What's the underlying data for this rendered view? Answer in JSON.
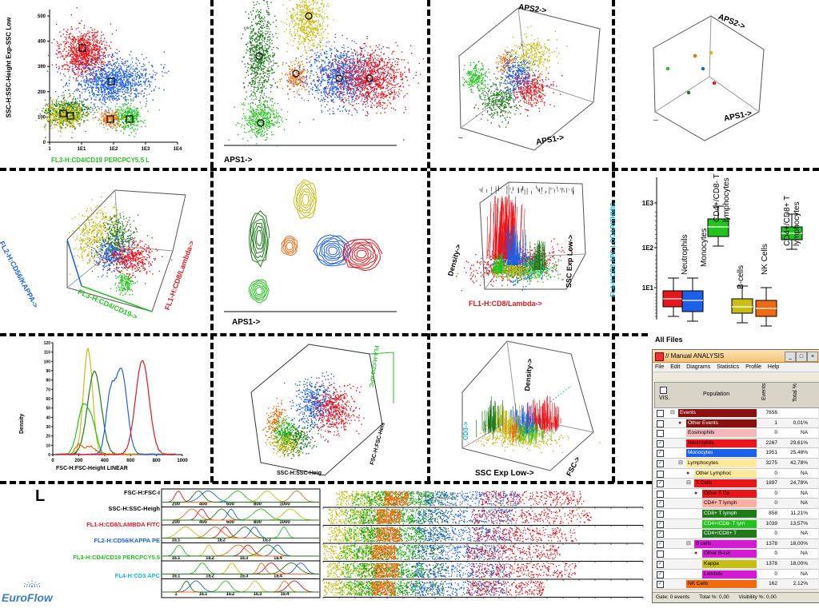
{
  "colors": {
    "red": "#e8151b",
    "blue": "#1c5fe8",
    "green": "#22c41c",
    "dkgreen": "#1f7a1a",
    "orange": "#f06a12",
    "yellow": "#c7bd14",
    "cyan": "#12b8d6"
  },
  "panel1": {
    "ylabel": "SSC-H:SSC-Height Exp-SSC Low",
    "xlabel": "FL3-H:CD4/CD19 PERCPCY5.5 L",
    "yticks": [
      "0",
      "100",
      "200",
      "300",
      "400",
      "500"
    ],
    "xticks": [
      "1",
      "1E1",
      "1E2",
      "1E3",
      "1E4"
    ]
  },
  "panel2": {
    "xlabel": "APS1->"
  },
  "panel3": {
    "aps2": "APS2->",
    "aps1": "APS1->",
    "dots": "..."
  },
  "panel4": {
    "aps2": "APS2->",
    "aps1": "APS1->",
    "dots": "..."
  },
  "panel5": {
    "ylabel": "FL2-H:CD56/KAPPA->",
    "xlabel": "FL3-H:CD4/CD19->",
    "zlabel": "FL1-H:CD8/Lambda->"
  },
  "panel6": {
    "xlabel": "APS1->"
  },
  "panel7": {
    "density": "Density->",
    "ssc": "SSC Exp Low->",
    "fl1": "FL1-H:CD8/Lambda->"
  },
  "panel8": {
    "ylabel": "FL4-H:CD3 APC LOGARITHMIC",
    "yticks": [
      "1E3",
      "1E2",
      "1E1"
    ],
    "boxes": [
      {
        "label": "Neutrophils",
        "color": "#e8151b"
      },
      {
        "label": "Monocytes",
        "color": "#1c5fe8"
      },
      {
        "label": "CD4+/CD8- T lymphocytes",
        "color": "#22c41c"
      },
      {
        "label": "B-cells",
        "color": "#c7bd14"
      },
      {
        "label": "NK Cells",
        "color": "#f06a12"
      },
      {
        "label": "CD4+/CD8+ T lymphocytes",
        "color": "#22c41c"
      }
    ],
    "all_files": "All Files"
  },
  "panel9": {
    "ylabel": "Density",
    "xlabel": "FSC-H:FSC-Height LINEAR",
    "yticks": [
      "0",
      "10",
      "20",
      "30",
      "40",
      "50",
      "60",
      "70",
      "80",
      "90",
      "100",
      "110",
      "120"
    ],
    "xticks": [
      "0",
      "200",
      "400",
      "600",
      "800",
      "1000"
    ]
  },
  "panel10": {
    "xlabel": "SSC-H:SSC-Heig",
    "ylabel": "FSC-H:FSC-Heis",
    "zlabel": "FL4-H:CD3 APC"
  },
  "panel11": {
    "density": "Density->",
    "ssc": "SSC Exp Low->",
    "fsc": "FSC->",
    "cd3": "CD3->"
  },
  "bottom": {
    "letter": "L",
    "rows": [
      {
        "label": "FSC-H:FSC-I",
        "color": "#000000"
      },
      {
        "label": "SSC-H:SSC-Heigh",
        "color": "#000000"
      },
      {
        "label": "FL1-H:CD8/LAMBDA FITC",
        "color": "#e8151b"
      },
      {
        "label": "FL2-H:CD56/KAPPA PE",
        "color": "#1c5fe8"
      },
      {
        "label": "FL3-H:CD4/CD19 PERCPCY5.5",
        "color": "#22c41c"
      },
      {
        "label": "FL4-H:CD3 APC",
        "color": "#12b8d6"
      }
    ],
    "row1_ticks": [
      "200",
      "400",
      "600",
      "800",
      "1000"
    ],
    "row2_ticks": [
      "200",
      "400",
      "600",
      "800",
      "1000"
    ],
    "row3_ticks": [
      "1E1",
      "1E2",
      "1E3"
    ],
    "row4_ticks": [
      "1E1",
      "1E2",
      "1E3",
      "1E4"
    ],
    "row5_ticks": [
      "1E1",
      "1E2",
      "1E3",
      "1E4"
    ],
    "row6_ticks": [
      "1",
      "1E1",
      "1E2",
      "1E3",
      "1E4"
    ],
    "logo": "EuroFlow"
  },
  "window": {
    "title": "// Manual ANALYSIS",
    "menu": [
      "File",
      "Edit",
      "Diagrams",
      "Statistics",
      "Profile",
      "Help"
    ],
    "col_vis": "VIS.",
    "col_population": "Population",
    "col_events": "Events",
    "col_total": "Total %",
    "rows": [
      {
        "name": "Events",
        "color": "#8b1010",
        "text": "#ffffff",
        "indent": 0,
        "events": "7656",
        "total": "",
        "checked": false,
        "tree": "⊟"
      },
      {
        "name": "Other Events",
        "color": "#8b1010",
        "text": "#ffffff",
        "indent": 10,
        "events": "1",
        "total": "0,01%",
        "checked": false,
        "tree": "●"
      },
      {
        "name": "Eosinophils",
        "color": "#f4b8b8",
        "text": "#000000",
        "indent": 10,
        "events": "0",
        "total": "NA",
        "checked": false,
        "tree": ""
      },
      {
        "name": "Neutrophils",
        "color": "#e8151b",
        "text": "#000000",
        "indent": 10,
        "events": "2267",
        "total": "29,61%",
        "checked": true,
        "tree": ""
      },
      {
        "name": "Monocytes",
        "color": "#1c5fe8",
        "text": "#ffffff",
        "indent": 10,
        "events": "1951",
        "total": "25,48%",
        "checked": true,
        "tree": ""
      },
      {
        "name": "Lymphocytes",
        "color": "#ffe89a",
        "text": "#000000",
        "indent": 10,
        "events": "3275",
        "total": "42,78%",
        "checked": true,
        "tree": "⊟"
      },
      {
        "name": "Other Lymphoc",
        "color": "#ffe89a",
        "text": "#000000",
        "indent": 20,
        "events": "0",
        "total": "NA",
        "checked": false,
        "tree": "●"
      },
      {
        "name": "T Cells",
        "color": "#e8151b",
        "text": "#000000",
        "indent": 20,
        "events": "1897",
        "total": "24,78%",
        "checked": true,
        "tree": "⊟"
      },
      {
        "name": "Other T Ce",
        "color": "#e8151b",
        "text": "#000000",
        "indent": 30,
        "events": "0",
        "total": "NA",
        "checked": false,
        "tree": "●"
      },
      {
        "name": "CD4+ T lymph",
        "color": "#ffb0a0",
        "text": "#000000",
        "indent": 30,
        "events": "0",
        "total": "NA",
        "checked": true,
        "tree": ""
      },
      {
        "name": "CD8+ T lymph",
        "color": "#1f7a1a",
        "text": "#ffffff",
        "indent": 30,
        "events": "858",
        "total": "11,21%",
        "checked": true,
        "tree": ""
      },
      {
        "name": "CD4+/CD8- T lym",
        "color": "#22c41c",
        "text": "#ffffff",
        "indent": 30,
        "events": "1039",
        "total": "13,57%",
        "checked": true,
        "tree": ""
      },
      {
        "name": "CD4+/CD8+ T",
        "color": "#1f7a1a",
        "text": "#ffffff",
        "indent": 30,
        "events": "0",
        "total": "NA",
        "checked": true,
        "tree": ""
      },
      {
        "name": "B cells",
        "color": "#d21bd2",
        "text": "#000000",
        "indent": 20,
        "events": "1378",
        "total": "18,00%",
        "checked": true,
        "tree": "⊟"
      },
      {
        "name": "Other B-cel",
        "color": "#d21bd2",
        "text": "#000000",
        "indent": 30,
        "events": "0",
        "total": "NA",
        "checked": false,
        "tree": "●"
      },
      {
        "name": "Kappa",
        "color": "#c7bd14",
        "text": "#000000",
        "indent": 30,
        "events": "1378",
        "total": "18,00%",
        "checked": true,
        "tree": ""
      },
      {
        "name": "Lambda",
        "color": "#d21bd2",
        "text": "#000000",
        "indent": 30,
        "events": "0",
        "total": "NA",
        "checked": true,
        "tree": ""
      },
      {
        "name": "NK Cells",
        "color": "#f06a12",
        "text": "#000000",
        "indent": 10,
        "events": "162",
        "total": "2,12%",
        "checked": true,
        "tree": ""
      }
    ],
    "status_gate": "Gate: 0 events",
    "status_total": "Total %: 0,00",
    "status_visibility": "Visibility %: 0,00"
  }
}
